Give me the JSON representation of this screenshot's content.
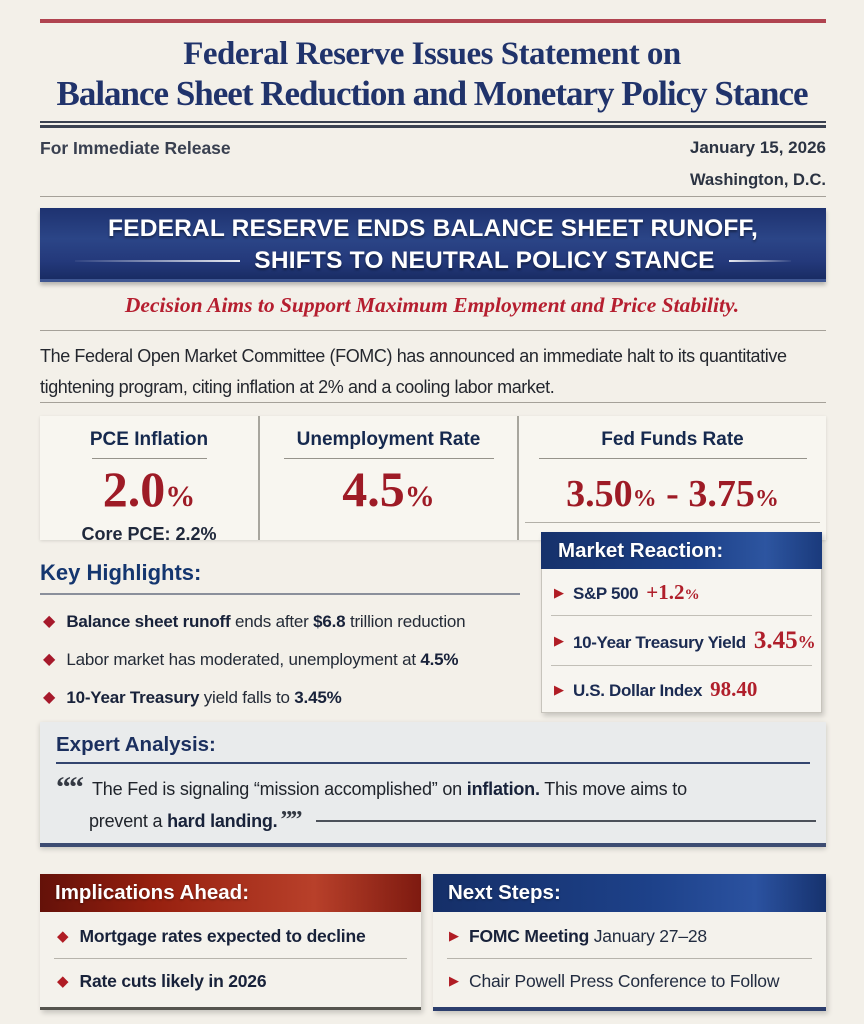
{
  "colors": {
    "page_bg": "#f3f0e9",
    "headline_navy": "#20336b",
    "banner_blue": "#23397b",
    "box_header_blue": "#1d4189",
    "implications_red": "#97200f",
    "value_red": "#9e1b26",
    "subtitle_crimson": "#b51e2f",
    "bullet_red": "#a6192b"
  },
  "icons": {
    "diamond_bullet": "◆",
    "triangle_bullet": "▶"
  },
  "masthead": {
    "title_line1": "Federal Reserve Issues Statement on",
    "title_line2": "Balance Sheet Reduction and Monetary Policy Stance",
    "release_label": "For Immediate Release",
    "date": "January 15, 2026",
    "location": "Washington, D.C."
  },
  "banner": {
    "line1": "FEDERAL RESERVE ENDS BALANCE SHEET RUNOFF,",
    "line2": "SHIFTS TO NEUTRAL POLICY STANCE",
    "subtitle": "Decision Aims to Support Maximum Employment and Price Stability."
  },
  "intro": "The Federal Open Market Committee (FOMC) has announced an immediate halt to its quantitative tightening program, citing inflation at 2% and a cooling labor market.",
  "stats": [
    {
      "label": "PCE Inflation",
      "value": "2.0",
      "unit": "%",
      "sub": "Core PCE: 2.2%"
    },
    {
      "label": "Unemployment Rate",
      "value": "4.5",
      "unit": "%"
    },
    {
      "label": "Fed Funds Rate",
      "low": "3.50",
      "high": "3.75",
      "unit": "%",
      "separator": " - "
    }
  ],
  "key_highlights": {
    "heading": "Key Highlights:",
    "items": [
      [
        {
          "t": "Balance sheet runoff",
          "b": true
        },
        {
          "t": " ends after ",
          "b": false
        },
        {
          "t": "$6.8",
          "b": true
        },
        {
          "t": " trillion reduction",
          "b": false
        }
      ],
      [
        {
          "t": "Labor market has moderated, unemployment at ",
          "b": false
        },
        {
          "t": "4.5%",
          "b": true
        }
      ],
      [
        {
          "t": "10-Year Treasury",
          "b": true
        },
        {
          "t": " yield falls to ",
          "b": false
        },
        {
          "t": "3.45%",
          "b": true
        }
      ]
    ]
  },
  "market_reaction": {
    "heading": "Market Reaction:",
    "rows": [
      {
        "label": "S&P 500",
        "value": "+1.2%",
        "size": "normal"
      },
      {
        "label": "10-Year Treasury Yield",
        "value": "3.45%",
        "size": "big"
      },
      {
        "label": "U.S. Dollar Index",
        "value": "98.40",
        "size": "normal"
      }
    ]
  },
  "expert_analysis": {
    "heading": "Expert Analysis:",
    "open_quote": "“",
    "close_quote": "”",
    "line1": [
      {
        "t": "The Fed is signaling “mission accomplished” on ",
        "b": false
      },
      {
        "t": "inflation.",
        "b": true
      },
      {
        "t": " This move aims to",
        "b": false
      }
    ],
    "line2": [
      {
        "t": "prevent a ",
        "b": false
      },
      {
        "t": "hard landing.",
        "b": true
      }
    ]
  },
  "implications": {
    "heading": "Implications Ahead:",
    "items": [
      [
        {
          "t": "Mortgage rates expected to decline",
          "b": true
        }
      ],
      [
        {
          "t": "Rate cuts likely in 2026",
          "b": true
        }
      ]
    ]
  },
  "next_steps": {
    "heading": "Next Steps:",
    "items": [
      [
        {
          "t": "FOMC Meeting",
          "b": true
        },
        {
          "t": " January 27–28",
          "b": false
        }
      ],
      [
        {
          "t": "Chair Powell Press Conference to Follow",
          "b": false
        }
      ]
    ]
  }
}
